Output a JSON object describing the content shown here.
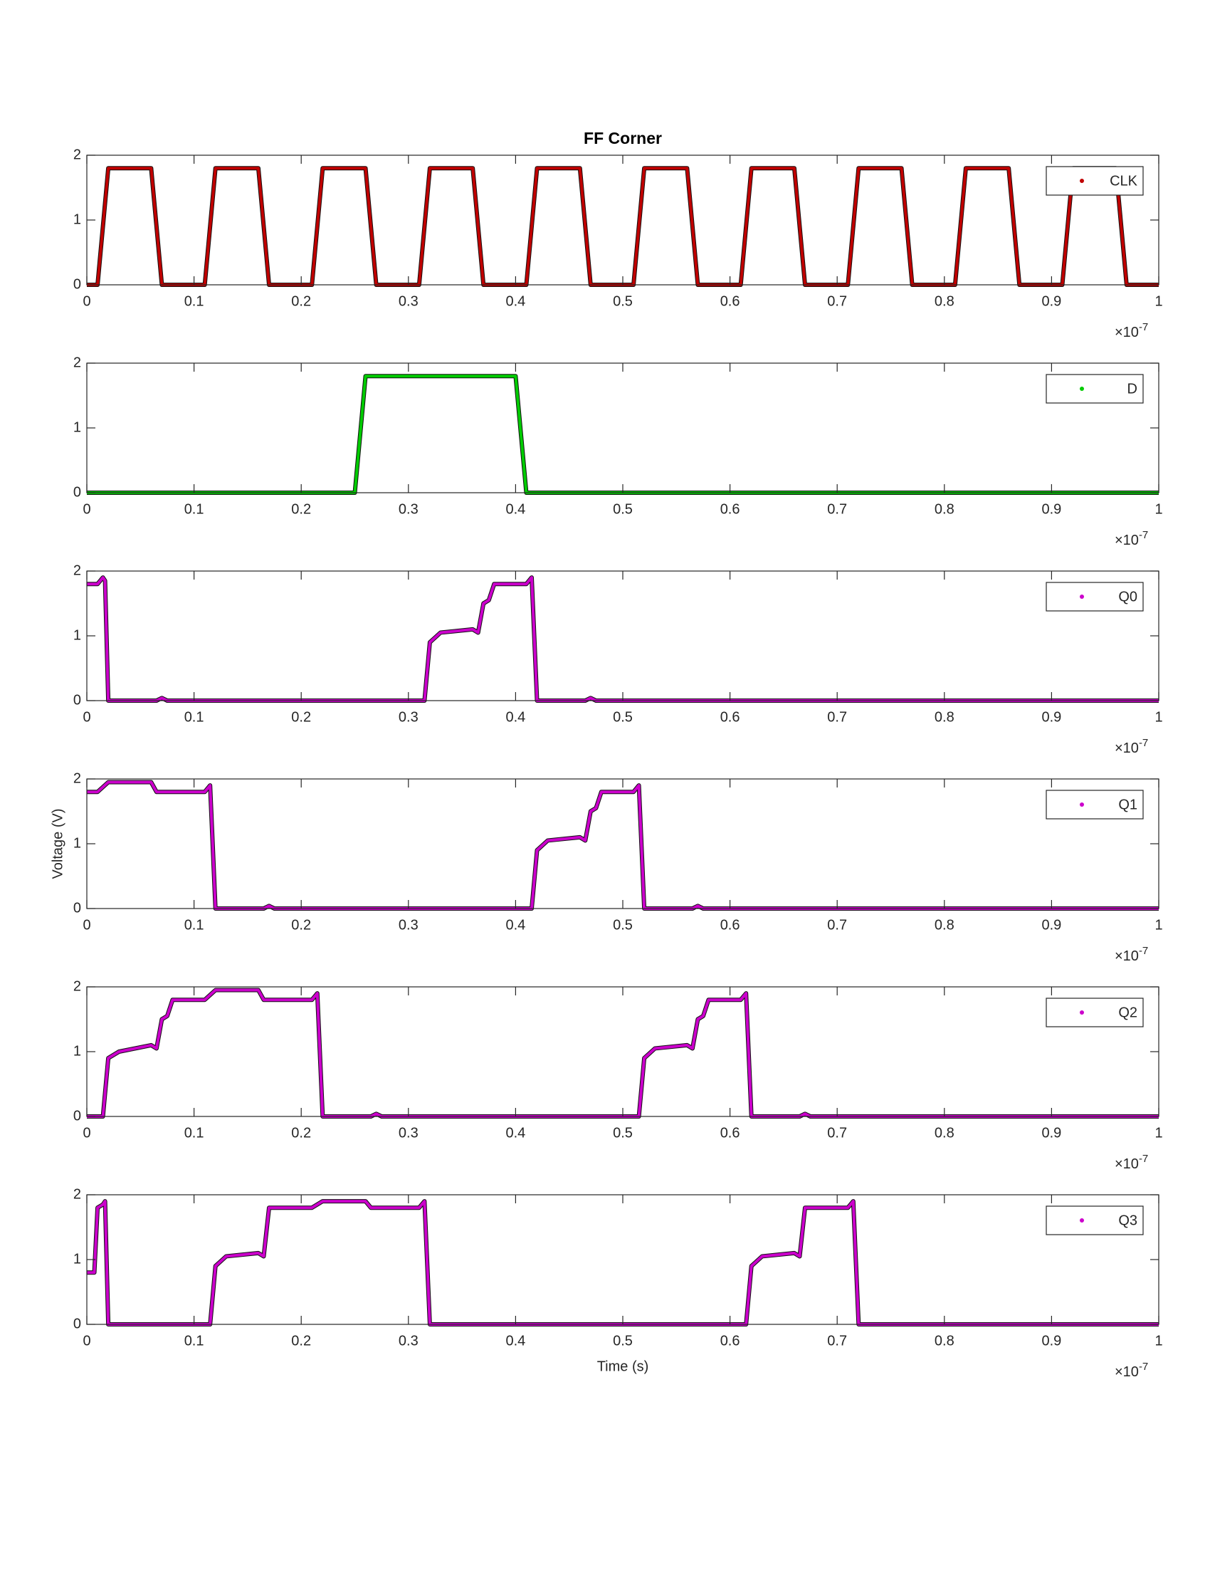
{
  "chart_data": [
    {
      "type": "line",
      "title": "FF Corner",
      "x_multiplier": "×10",
      "x_exponent": "-7",
      "legend": "upper right",
      "xlim": [
        0,
        1
      ],
      "xticks": [
        0,
        0.1,
        0.2,
        0.3,
        0.4,
        0.5,
        0.6,
        0.7,
        0.8,
        0.9,
        1
      ],
      "ylim": [
        0,
        2
      ],
      "yticks": [
        0,
        1,
        2
      ],
      "series": [
        {
          "name": "CLK",
          "color": "#c00000",
          "x": [
            0,
            0.01,
            0.02,
            0.06,
            0.07,
            0.11,
            0.12,
            0.16,
            0.17,
            0.21,
            0.22,
            0.26,
            0.27,
            0.31,
            0.32,
            0.36,
            0.37,
            0.41,
            0.42,
            0.46,
            0.47,
            0.51,
            0.52,
            0.56,
            0.57,
            0.61,
            0.62,
            0.66,
            0.67,
            0.71,
            0.72,
            0.76,
            0.77,
            0.81,
            0.82,
            0.86,
            0.87,
            0.91,
            0.92,
            0.96,
            0.97,
            1
          ],
          "values": [
            0,
            0,
            1.8,
            1.8,
            0,
            0,
            1.8,
            1.8,
            0,
            0,
            1.8,
            1.8,
            0,
            0,
            1.8,
            1.8,
            0,
            0,
            1.8,
            1.8,
            0,
            0,
            1.8,
            1.8,
            0,
            0,
            1.8,
            1.8,
            0,
            0,
            1.8,
            1.8,
            0,
            0,
            1.8,
            1.8,
            0,
            0,
            1.8,
            1.8,
            0,
            0
          ]
        }
      ]
    },
    {
      "type": "line",
      "x_multiplier": "×10",
      "x_exponent": "-7",
      "legend": "upper right",
      "xlim": [
        0,
        1
      ],
      "xticks": [
        0,
        0.1,
        0.2,
        0.3,
        0.4,
        0.5,
        0.6,
        0.7,
        0.8,
        0.9,
        1
      ],
      "ylim": [
        0,
        2
      ],
      "yticks": [
        0,
        1,
        2
      ],
      "series": [
        {
          "name": "D",
          "color": "#00cc00",
          "x": [
            0,
            0.25,
            0.26,
            0.4,
            0.41,
            1
          ],
          "values": [
            0,
            0,
            1.8,
            1.8,
            0,
            0
          ]
        }
      ]
    },
    {
      "type": "line",
      "x_multiplier": "×10",
      "x_exponent": "-7",
      "legend": "upper right",
      "xlim": [
        0,
        1
      ],
      "xticks": [
        0,
        0.1,
        0.2,
        0.3,
        0.4,
        0.5,
        0.6,
        0.7,
        0.8,
        0.9,
        1
      ],
      "ylim": [
        0,
        2
      ],
      "yticks": [
        0,
        1,
        2
      ],
      "series": [
        {
          "name": "Q0",
          "color": "#cc00cc",
          "x": [
            0,
            0.01,
            0.015,
            0.017,
            0.02,
            0.065,
            0.07,
            0.075,
            0.315,
            0.32,
            0.33,
            0.36,
            0.365,
            0.37,
            0.375,
            0.38,
            0.41,
            0.415,
            0.42,
            0.465,
            0.47,
            0.475,
            1
          ],
          "values": [
            1.8,
            1.8,
            1.9,
            1.85,
            0,
            0,
            0.04,
            0,
            0,
            0.9,
            1.05,
            1.1,
            1.05,
            1.5,
            1.55,
            1.8,
            1.8,
            1.9,
            0,
            0,
            0.04,
            0,
            0
          ]
        }
      ]
    },
    {
      "type": "line",
      "ylabel": "Voltage (V)",
      "x_multiplier": "×10",
      "x_exponent": "-7",
      "legend": "upper right",
      "xlim": [
        0,
        1
      ],
      "xticks": [
        0,
        0.1,
        0.2,
        0.3,
        0.4,
        0.5,
        0.6,
        0.7,
        0.8,
        0.9,
        1
      ],
      "ylim": [
        0,
        2
      ],
      "yticks": [
        0,
        1,
        2
      ],
      "series": [
        {
          "name": "Q1",
          "color": "#cc00cc",
          "x": [
            0,
            0.01,
            0.02,
            0.06,
            0.065,
            0.11,
            0.115,
            0.12,
            0.165,
            0.17,
            0.175,
            0.415,
            0.42,
            0.43,
            0.46,
            0.465,
            0.47,
            0.475,
            0.48,
            0.51,
            0.515,
            0.52,
            0.565,
            0.57,
            0.575,
            1
          ],
          "values": [
            1.8,
            1.8,
            1.95,
            1.95,
            1.8,
            1.8,
            1.9,
            0,
            0,
            0.04,
            0,
            0,
            0.9,
            1.05,
            1.1,
            1.05,
            1.5,
            1.55,
            1.8,
            1.8,
            1.9,
            0,
            0,
            0.04,
            0,
            0
          ]
        }
      ]
    },
    {
      "type": "line",
      "x_multiplier": "×10",
      "x_exponent": "-7",
      "legend": "upper right",
      "xlim": [
        0,
        1
      ],
      "xticks": [
        0,
        0.1,
        0.2,
        0.3,
        0.4,
        0.5,
        0.6,
        0.7,
        0.8,
        0.9,
        1
      ],
      "ylim": [
        0,
        2
      ],
      "yticks": [
        0,
        1,
        2
      ],
      "series": [
        {
          "name": "Q2",
          "color": "#cc00cc",
          "x": [
            0,
            0.015,
            0.02,
            0.03,
            0.06,
            0.065,
            0.07,
            0.075,
            0.08,
            0.11,
            0.12,
            0.16,
            0.165,
            0.21,
            0.215,
            0.22,
            0.265,
            0.27,
            0.275,
            0.515,
            0.52,
            0.53,
            0.56,
            0.565,
            0.57,
            0.575,
            0.58,
            0.61,
            0.615,
            0.62,
            0.665,
            0.67,
            0.675,
            1
          ],
          "values": [
            0,
            0,
            0.9,
            1.0,
            1.1,
            1.05,
            1.5,
            1.55,
            1.8,
            1.8,
            1.95,
            1.95,
            1.8,
            1.8,
            1.9,
            0,
            0,
            0.04,
            0,
            0,
            0.9,
            1.05,
            1.1,
            1.05,
            1.5,
            1.55,
            1.8,
            1.8,
            1.9,
            0,
            0,
            0.04,
            0,
            0
          ]
        }
      ]
    },
    {
      "type": "line",
      "xlabel": "Time (s)",
      "x_multiplier": "×10",
      "x_exponent": "-7",
      "legend": "upper right",
      "xlim": [
        0,
        1
      ],
      "xticks": [
        0,
        0.1,
        0.2,
        0.3,
        0.4,
        0.5,
        0.6,
        0.7,
        0.8,
        0.9,
        1
      ],
      "ylim": [
        0,
        2
      ],
      "yticks": [
        0,
        1,
        2
      ],
      "series": [
        {
          "name": "Q3",
          "color": "#cc00cc",
          "x": [
            0,
            0.007,
            0.01,
            0.015,
            0.017,
            0.02,
            0.115,
            0.12,
            0.13,
            0.16,
            0.165,
            0.17,
            0.21,
            0.22,
            0.26,
            0.265,
            0.31,
            0.315,
            0.32,
            0.615,
            0.62,
            0.63,
            0.66,
            0.665,
            0.67,
            0.71,
            0.715,
            0.72,
            1
          ],
          "values": [
            0.8,
            0.8,
            1.8,
            1.85,
            1.9,
            0,
            0,
            0.9,
            1.05,
            1.1,
            1.05,
            1.8,
            1.8,
            1.9,
            1.9,
            1.8,
            1.8,
            1.9,
            0,
            0,
            0.9,
            1.05,
            1.1,
            1.05,
            1.8,
            1.8,
            1.9,
            0,
            0
          ]
        }
      ]
    }
  ]
}
